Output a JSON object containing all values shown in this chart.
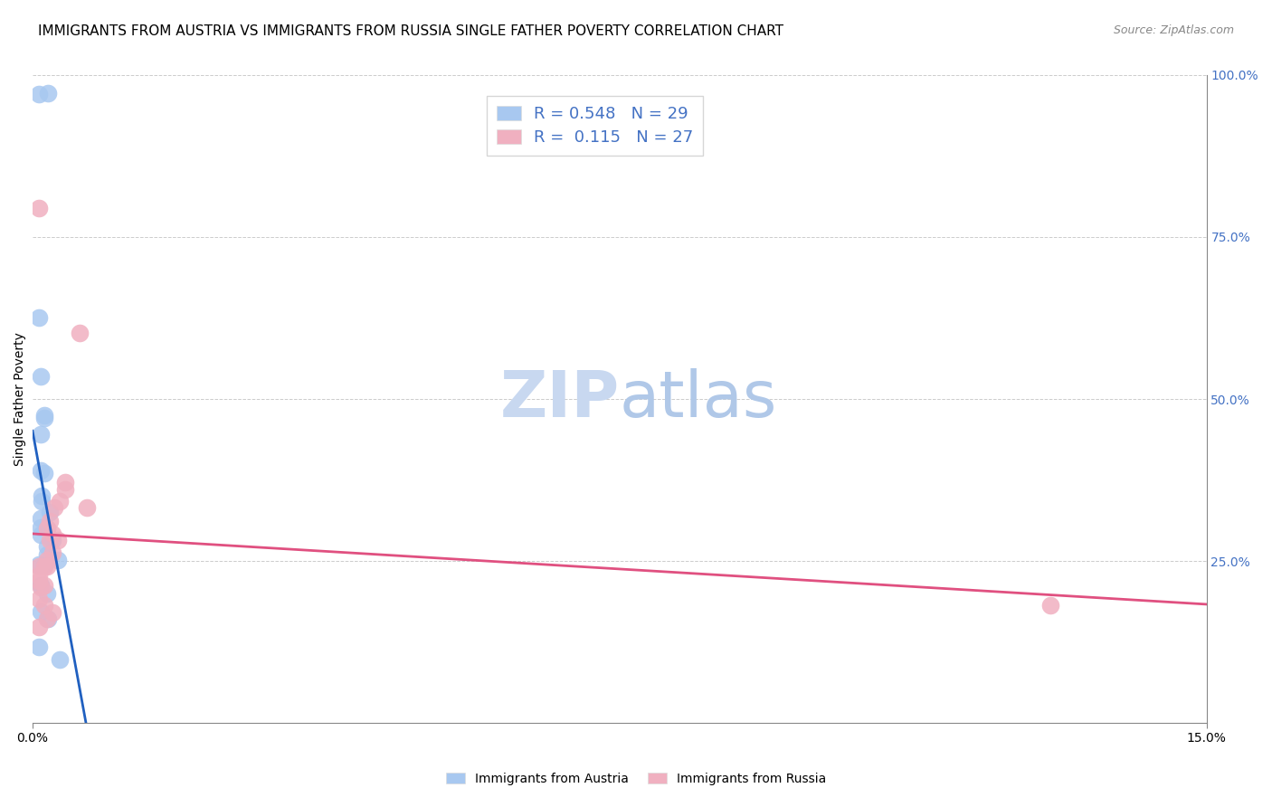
{
  "title": "IMMIGRANTS FROM AUSTRIA VS IMMIGRANTS FROM RUSSIA SINGLE FATHER POVERTY CORRELATION CHART",
  "source": "Source: ZipAtlas.com",
  "ylabel": "Single Father Poverty",
  "legend_austria": "Immigrants from Austria",
  "legend_russia": "Immigrants from Russia",
  "legend_R_austria": "R = 0.548",
  "legend_N_austria": "N = 29",
  "legend_R_russia": "R =  0.115",
  "legend_N_russia": "N = 27",
  "austria_color": "#a8c8f0",
  "russia_color": "#f0b0c0",
  "austria_line_color": "#2060c0",
  "russia_line_color": "#e05080",
  "background_color": "#ffffff",
  "austria_x": [
    0.0008,
    0.0015,
    0.0008,
    0.0008,
    0.002,
    0.001,
    0.0015,
    0.0015,
    0.001,
    0.001,
    0.0015,
    0.0012,
    0.0012,
    0.001,
    0.001,
    0.0018,
    0.001,
    0.0022,
    0.0018,
    0.0025,
    0.0018,
    0.0032,
    0.001,
    0.001,
    0.0018,
    0.001,
    0.002,
    0.0008,
    0.0035
  ],
  "austria_y": [
    0.245,
    0.245,
    0.625,
    0.97,
    0.972,
    0.535,
    0.475,
    0.47,
    0.445,
    0.39,
    0.385,
    0.35,
    0.342,
    0.315,
    0.302,
    0.3,
    0.29,
    0.325,
    0.272,
    0.282,
    0.26,
    0.252,
    0.212,
    0.212,
    0.2,
    0.172,
    0.16,
    0.118,
    0.098
  ],
  "russia_x": [
    0.0008,
    0.0015,
    0.0008,
    0.0008,
    0.001,
    0.0015,
    0.0022,
    0.0018,
    0.0025,
    0.0022,
    0.0032,
    0.0025,
    0.0018,
    0.0018,
    0.0028,
    0.0035,
    0.0042,
    0.0042,
    0.006,
    0.007,
    0.0008,
    0.0015,
    0.0025,
    0.0018,
    0.13,
    0.0008,
    0.0008
  ],
  "russia_y": [
    0.242,
    0.242,
    0.228,
    0.22,
    0.21,
    0.212,
    0.312,
    0.3,
    0.292,
    0.282,
    0.282,
    0.262,
    0.252,
    0.242,
    0.332,
    0.342,
    0.372,
    0.36,
    0.602,
    0.332,
    0.192,
    0.182,
    0.17,
    0.16,
    0.182,
    0.795,
    0.148
  ],
  "xlim": [
    0.0,
    0.15
  ],
  "ylim": [
    0.0,
    1.0
  ],
  "title_fontsize": 11,
  "axis_fontsize": 10,
  "legend_fontsize": 13,
  "watermark_zip": "ZIP",
  "watermark_atlas": "atlas",
  "watermark_color_zip": "#c8d8f0",
  "watermark_color_atlas": "#b0c8e8",
  "watermark_fontsize": 52
}
